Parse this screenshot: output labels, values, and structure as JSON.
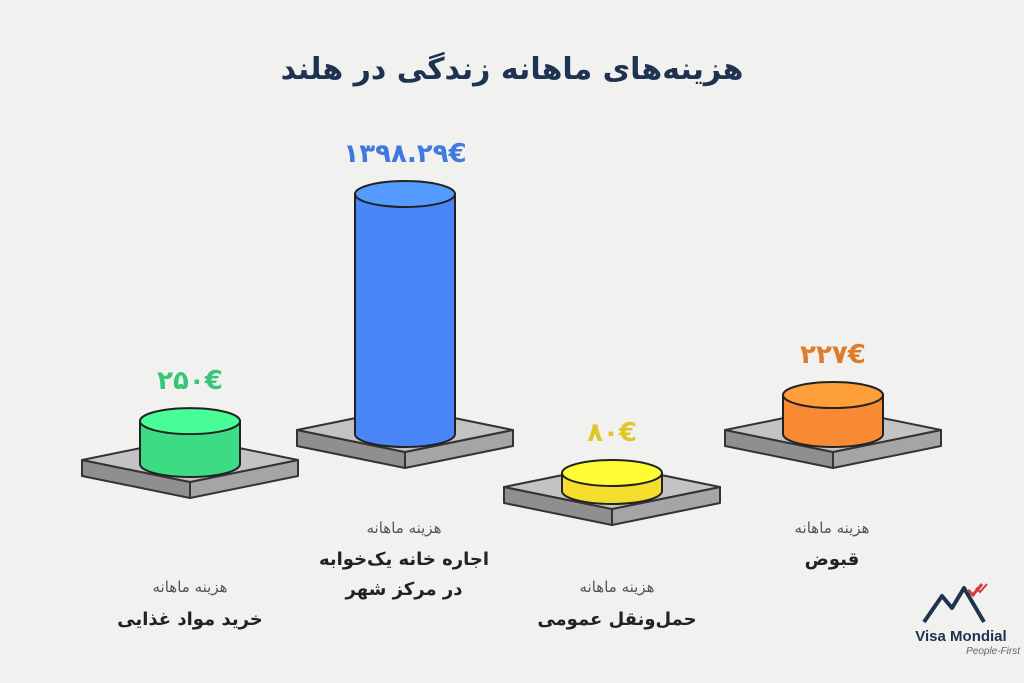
{
  "title": "هزینه‌های ماهانه زندگی در هلند",
  "chart_data": {
    "type": "bar",
    "categories": [
      {
        "sub": "هزینه ماهانه",
        "lines": [
          "خرید مواد غذایی"
        ]
      },
      {
        "sub": "هزینه ماهانه",
        "lines": [
          "اجاره خانه یک‌خوابه",
          "در مرکز شهر"
        ]
      },
      {
        "sub": "هزینه ماهانه",
        "lines": [
          "حمل‌ونقل عمومی"
        ]
      },
      {
        "sub": "هزینه ماهانه",
        "lines": [
          "قبوض"
        ]
      }
    ],
    "values": [
      250,
      1398.29,
      80,
      227
    ],
    "value_labels": [
      "۲۵۰€",
      "۱۳۹۸.۲۹€",
      "۸۰€",
      "۲۲۷€"
    ],
    "colors": [
      "#3ddc84",
      "#4a86f7",
      "#f5dd2e",
      "#f78a32"
    ],
    "title": "هزینه‌های ماهانه زندگی در هلند"
  },
  "logo": {
    "name": "Visa Mondial",
    "tagline": "People-First"
  }
}
